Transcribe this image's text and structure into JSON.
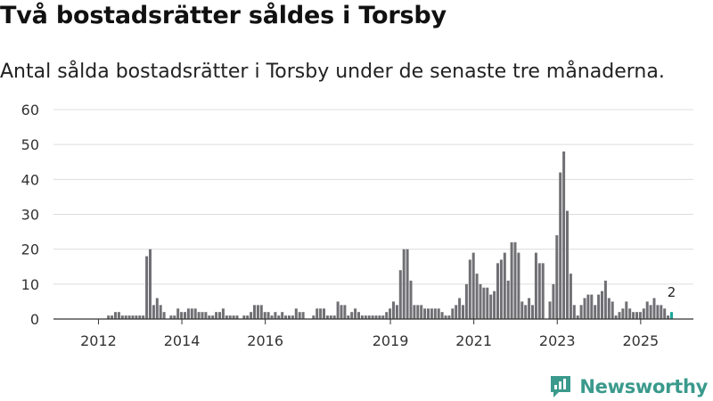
{
  "title": "Två bostadsrätter såldes i Torsby",
  "subtitle": "Antal sålda bostadsrätter i Torsby under de senaste tre månaderna.",
  "brand": "Newsworthy",
  "colors": {
    "bar": "#707074",
    "highlight": "#1aa69a",
    "grid": "#dddddd",
    "axis": "#333333",
    "brand": "#3a9a8c"
  },
  "chart_data": {
    "type": "bar",
    "title": "Två bostadsrätter såldes i Torsby",
    "xlabel": "",
    "ylabel": "",
    "ylim": [
      0,
      60
    ],
    "yticks": [
      0,
      10,
      20,
      30,
      40,
      50,
      60
    ],
    "x_tick_labels": [
      "2012",
      "2014",
      "2016",
      "2019",
      "2021",
      "2023",
      "2025"
    ],
    "x_tick_month_index": [
      6,
      30,
      54,
      90,
      114,
      138,
      162
    ],
    "highlight_label": "2",
    "series": [
      {
        "name": "Sålda bostadsrätter",
        "start": "2011-01",
        "values": [
          0,
          0,
          0,
          0,
          0,
          0,
          0,
          0,
          1,
          1,
          2,
          2,
          1,
          1,
          1,
          1,
          1,
          1,
          1,
          18,
          20,
          4,
          6,
          4,
          2,
          0,
          1,
          1,
          3,
          2,
          2,
          3,
          3,
          3,
          2,
          2,
          2,
          1,
          1,
          2,
          2,
          3,
          1,
          1,
          1,
          1,
          0,
          1,
          1,
          2,
          4,
          4,
          4,
          2,
          2,
          1,
          2,
          1,
          2,
          1,
          1,
          1,
          3,
          2,
          2,
          0,
          0,
          1,
          3,
          3,
          3,
          1,
          1,
          1,
          5,
          4,
          4,
          1,
          2,
          3,
          2,
          1,
          1,
          1,
          1,
          1,
          1,
          1,
          2,
          3,
          5,
          4,
          14,
          20,
          20,
          11,
          4,
          4,
          4,
          3,
          3,
          3,
          3,
          3,
          2,
          1,
          1,
          3,
          4,
          6,
          4,
          10,
          17,
          19,
          13,
          10,
          9,
          9,
          7,
          8,
          16,
          17,
          19,
          11,
          22,
          22,
          19,
          5,
          4,
          6,
          4,
          19,
          16,
          16,
          0,
          5,
          10,
          24,
          42,
          48,
          31,
          13,
          4,
          1,
          4,
          6,
          7,
          7,
          4,
          7,
          8,
          11,
          6,
          5,
          1,
          2,
          3,
          5,
          3,
          2,
          2,
          2,
          3,
          5,
          4,
          6,
          4,
          4,
          3,
          1,
          2
        ]
      }
    ]
  }
}
